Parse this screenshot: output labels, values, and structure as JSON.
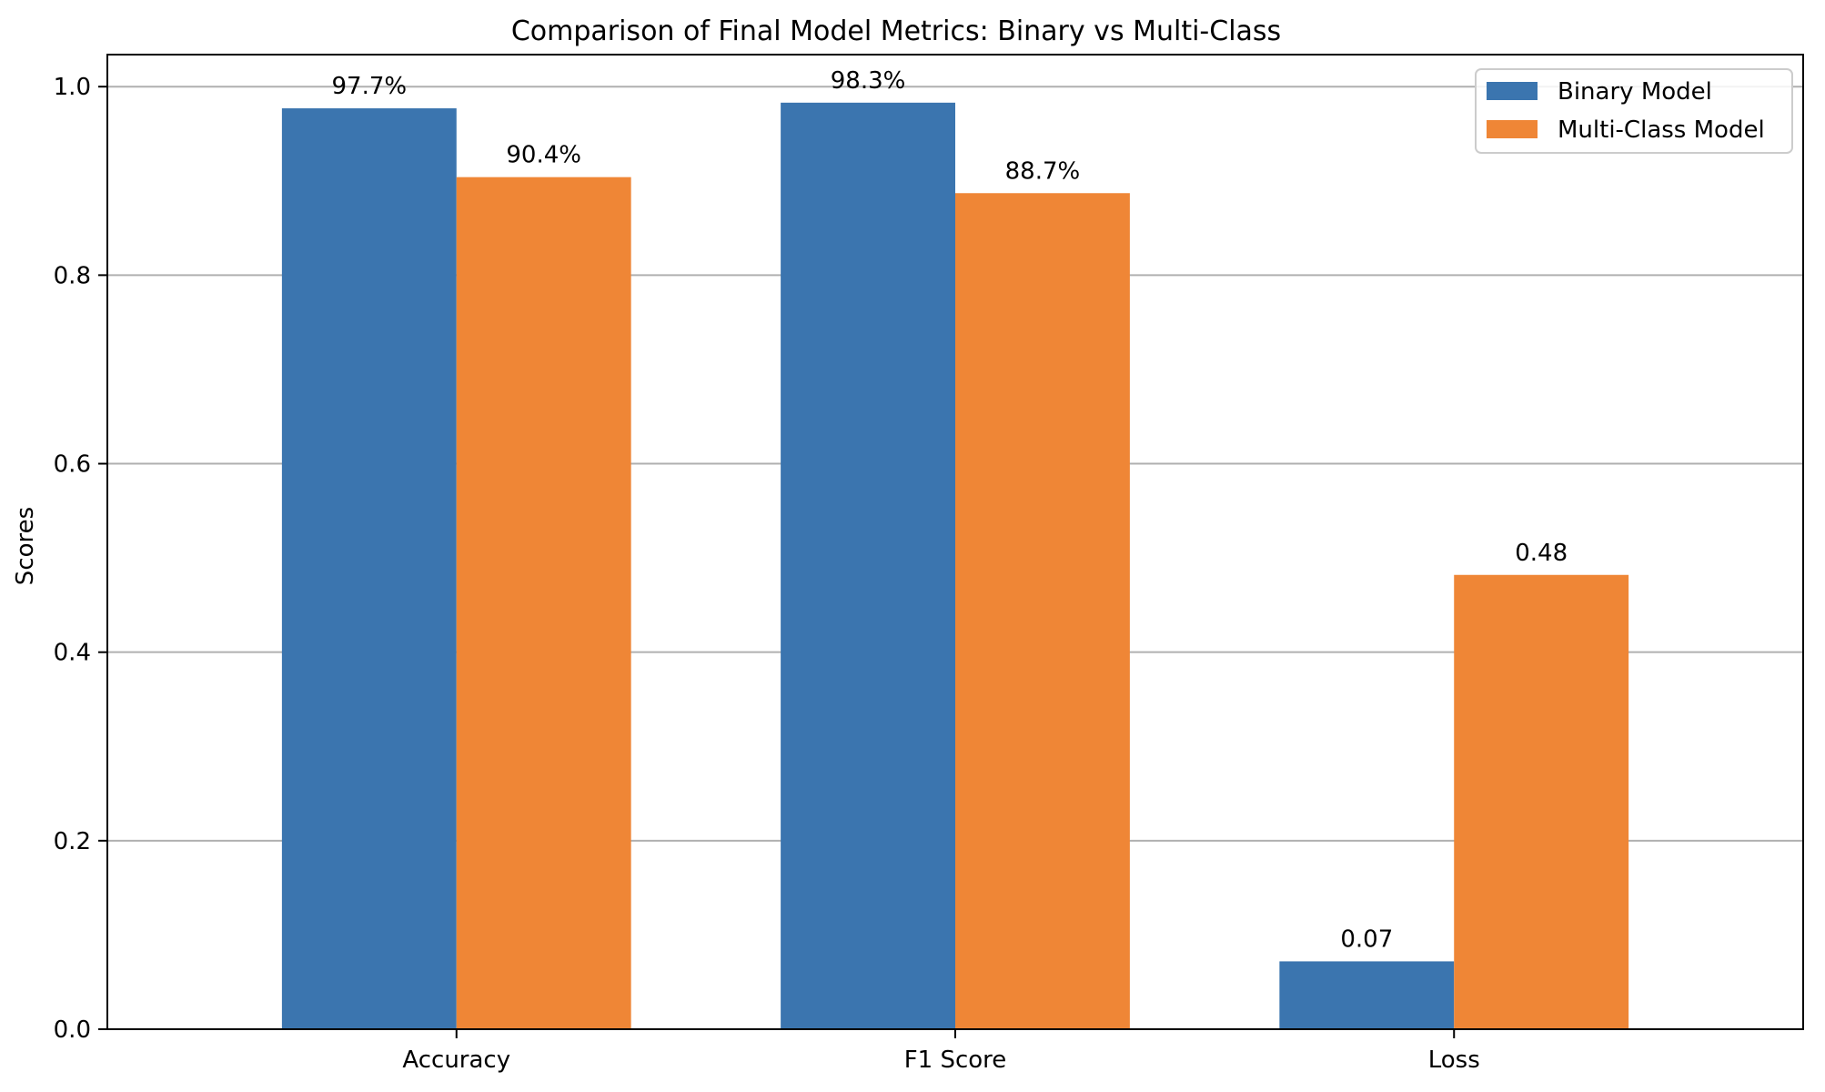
{
  "chart_data": {
    "type": "bar",
    "title": "Comparison of Final Model Metrics: Binary vs Multi-Class",
    "xlabel": "",
    "ylabel": "Scores",
    "categories": [
      "Accuracy",
      "F1 Score",
      "Loss"
    ],
    "series": [
      {
        "name": "Binary Model",
        "color": "#3b75af",
        "values": [
          0.977,
          0.983,
          0.072
        ],
        "labels": [
          "97.7%",
          "98.3%",
          "0.07"
        ]
      },
      {
        "name": "Multi-Class Model",
        "color": "#ef8636",
        "values": [
          0.904,
          0.887,
          0.482
        ],
        "labels": [
          "90.4%",
          "88.7%",
          "0.48"
        ]
      }
    ],
    "ylim": [
      0,
      1.034
    ],
    "yticks": [
      0.0,
      0.2,
      0.4,
      0.6,
      0.8,
      1.0
    ],
    "ytick_labels": [
      "0.0",
      "0.2",
      "0.4",
      "0.6",
      "0.8",
      "1.0"
    ],
    "grid": "horizontal",
    "legend_position": "top-right"
  }
}
